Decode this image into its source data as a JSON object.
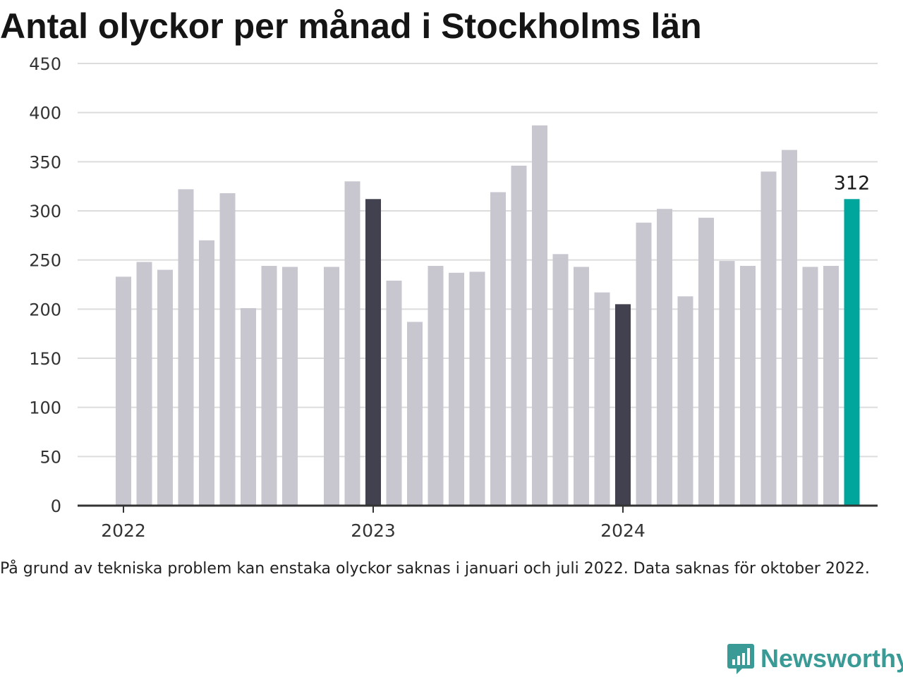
{
  "title": "Antal olyckor per månad i Stockholms län",
  "footnote": "På grund av tekniska problem kan enstaka olyckor saknas i januari och juli 2022. Data saknas för oktober 2022.",
  "brand": {
    "name": "Newsworthy",
    "icon": "newsworthy-logo-icon"
  },
  "colors": {
    "bar_default": "#c8c7cf",
    "bar_january": "#42414f",
    "bar_latest": "#00a69c",
    "grid": "#dcdcdc",
    "axis": "#333333",
    "brand": "#3a9a96"
  },
  "chart_data": {
    "type": "bar",
    "title": "Antal olyckor per månad i Stockholms län",
    "xlabel": "",
    "ylabel": "",
    "ylim": [
      0,
      450
    ],
    "yticks": [
      0,
      50,
      100,
      150,
      200,
      250,
      300,
      350,
      400,
      450
    ],
    "x_tick_labels": [
      "2022",
      "2023",
      "2024"
    ],
    "x_tick_months": [
      "2022-01",
      "2023-01",
      "2024-01"
    ],
    "grid": true,
    "months": [
      "2022-01",
      "2022-02",
      "2022-03",
      "2022-04",
      "2022-05",
      "2022-06",
      "2022-07",
      "2022-08",
      "2022-09",
      "2022-10",
      "2022-11",
      "2022-12",
      "2023-01",
      "2023-02",
      "2023-03",
      "2023-04",
      "2023-05",
      "2023-06",
      "2023-07",
      "2023-08",
      "2023-09",
      "2023-10",
      "2023-11",
      "2023-12",
      "2024-01",
      "2024-02",
      "2024-03",
      "2024-04",
      "2024-05",
      "2024-06",
      "2024-07",
      "2024-08",
      "2024-09",
      "2024-10",
      "2024-11",
      "2024-12"
    ],
    "values": [
      233,
      248,
      240,
      322,
      270,
      318,
      201,
      244,
      243,
      null,
      243,
      330,
      312,
      229,
      187,
      244,
      237,
      238,
      319,
      346,
      387,
      256,
      243,
      217,
      205,
      288,
      302,
      213,
      293,
      249,
      244,
      340,
      362,
      243,
      244,
      312
    ],
    "highlight": {
      "January": "bar_january",
      "latest": "bar_latest"
    },
    "data_labels": [
      {
        "month": "2024-12",
        "text": "312"
      }
    ]
  }
}
